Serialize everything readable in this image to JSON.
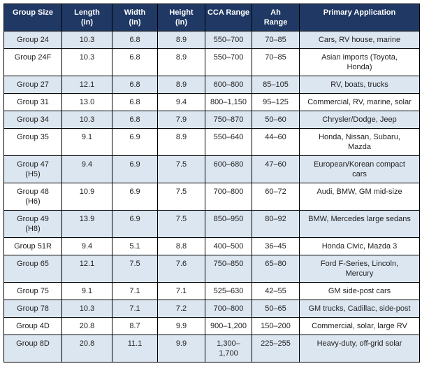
{
  "table": {
    "headers": [
      "Group Size",
      "Length\n(in)",
      "Width\n(in)",
      "Height\n(in)",
      "CCA Range",
      "Ah\nRange",
      "Primary Application"
    ],
    "rows": [
      [
        "Group 24",
        "10.3",
        "6.8",
        "8.9",
        "550–700",
        "70–85",
        "Cars, RV house, marine"
      ],
      [
        "Group 24F",
        "10.3",
        "6.8",
        "8.9",
        "550–700",
        "70–85",
        "Asian imports (Toyota,\nHonda)"
      ],
      [
        "Group 27",
        "12.1",
        "6.8",
        "8.9",
        "600–800",
        "85–105",
        "RV, boats, trucks"
      ],
      [
        "Group 31",
        "13.0",
        "6.8",
        "9.4",
        "800–1,150",
        "95–125",
        "Commercial, RV, marine, solar"
      ],
      [
        "Group 34",
        "10.3",
        "6.8",
        "7.9",
        "750–870",
        "50–60",
        "Chrysler/Dodge, Jeep"
      ],
      [
        "Group 35",
        "9.1",
        "6.9",
        "8.9",
        "550–640",
        "44–60",
        "Honda, Nissan, Subaru,\nMazda"
      ],
      [
        "Group 47\n(H5)",
        "9.4",
        "6.9",
        "7.5",
        "600–680",
        "47–60",
        "European/Korean compact\ncars"
      ],
      [
        "Group 48\n(H6)",
        "10.9",
        "6.9",
        "7.5",
        "700–800",
        "60–72",
        "Audi, BMW, GM mid-size"
      ],
      [
        "Group 49\n(H8)",
        "13.9",
        "6.9",
        "7.5",
        "850–950",
        "80–92",
        "BMW, Mercedes large sedans"
      ],
      [
        "Group 51R",
        "9.4",
        "5.1",
        "8.8",
        "400–500",
        "36–45",
        "Honda Civic, Mazda 3"
      ],
      [
        "Group 65",
        "12.1",
        "7.5",
        "7.6",
        "750–850",
        "65–80",
        "Ford F-Series, Lincoln,\nMercury"
      ],
      [
        "Group 75",
        "9.1",
        "7.1",
        "7.1",
        "525–630",
        "42–55",
        "GM side-post cars"
      ],
      [
        "Group 78",
        "10.3",
        "7.1",
        "7.2",
        "700–800",
        "50–65",
        "GM trucks, Cadillac, side-post"
      ],
      [
        "Group 4D",
        "20.8",
        "8.7",
        "9.9",
        "900–1,200",
        "150–200",
        "Commercial, solar, large RV"
      ],
      [
        "Group 8D",
        "20.8",
        "11.1",
        "9.9",
        "1,300–\n1,700",
        "225–255",
        "Heavy-duty, off-grid solar"
      ]
    ]
  }
}
